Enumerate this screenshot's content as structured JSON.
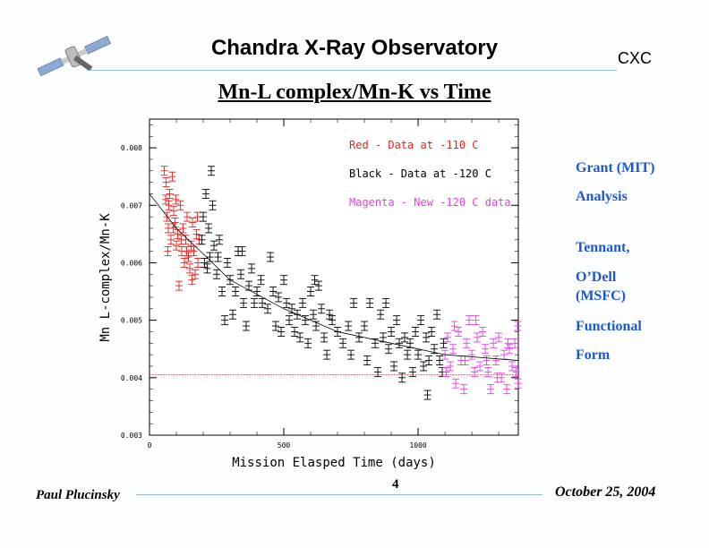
{
  "header": {
    "title": "Chandra X-Ray Observatory",
    "org": "CXC",
    "subtitle": "Mn-L complex/Mn-K vs Time"
  },
  "sidebar_notes": [
    "Grant (MIT)",
    "Analysis",
    "Tennant,",
    "O’Dell",
    "(MSFC)",
    "Functional",
    "Form"
  ],
  "footer": {
    "author": "Paul Plucinsky",
    "page": "4",
    "date": "October 25, 2004"
  },
  "colors": {
    "accent": "#1a56d6",
    "red": "#e8201c",
    "black": "#000000",
    "magenta": "#e040e0",
    "rule": "#8fb8dc"
  },
  "chart_data": {
    "type": "scatter",
    "title": "",
    "xlabel": "Mission Elasped Time (days)",
    "ylabel": "Mn L-complex/Mn-K",
    "xlim": [
      0,
      1373
    ],
    "ylim": [
      0.003,
      0.0085
    ],
    "xticks": [
      "0",
      "500",
      "1000"
    ],
    "yticks": [
      "0.003",
      "0.004",
      "0.005",
      "0.006",
      "0.007",
      "0.008"
    ],
    "grid": false,
    "legend_placement": "top-right",
    "legend": [
      {
        "text": "Red - Data at -110 C",
        "color": "#e8201c"
      },
      {
        "text": "Black - Data at -120 C",
        "color": "#000000"
      },
      {
        "text": "Magenta - New -120 C data",
        "color": "#e040e0"
      }
    ],
    "series": [
      {
        "color": "#e8201c",
        "points": [
          [
            55,
            0.0076
          ],
          [
            60,
            0.0071
          ],
          [
            65,
            0.0068
          ],
          [
            70,
            0.0066
          ],
          [
            75,
            0.0072
          ],
          [
            80,
            0.0064
          ],
          [
            85,
            0.0075
          ],
          [
            90,
            0.0069
          ],
          [
            95,
            0.0067
          ],
          [
            100,
            0.0063
          ],
          [
            105,
            0.0065
          ],
          [
            110,
            0.0056
          ],
          [
            115,
            0.007
          ],
          [
            120,
            0.0062
          ],
          [
            125,
            0.0066
          ],
          [
            130,
            0.006
          ],
          [
            135,
            0.0064
          ],
          [
            140,
            0.0068
          ],
          [
            145,
            0.0061
          ],
          [
            150,
            0.0059
          ],
          [
            155,
            0.0063
          ],
          [
            160,
            0.0067
          ],
          [
            165,
            0.0062
          ],
          [
            170,
            0.0058
          ],
          [
            175,
            0.0065
          ],
          [
            180,
            0.006
          ],
          [
            185,
            0.0064
          ],
          [
            62,
            0.0074
          ],
          [
            72,
            0.007
          ],
          [
            88,
            0.0066
          ],
          [
            98,
            0.0071
          ],
          [
            118,
            0.0064
          ],
          [
            138,
            0.0062
          ],
          [
            158,
            0.0057
          ],
          [
            178,
            0.0068
          ],
          [
            68,
            0.0062
          ]
        ]
      },
      {
        "color": "#000000",
        "points": [
          [
            195,
            0.0064
          ],
          [
            200,
            0.0068
          ],
          [
            205,
            0.006
          ],
          [
            210,
            0.0072
          ],
          [
            215,
            0.0059
          ],
          [
            220,
            0.0066
          ],
          [
            225,
            0.0061
          ],
          [
            230,
            0.0076
          ],
          [
            235,
            0.007
          ],
          [
            240,
            0.0063
          ],
          [
            250,
            0.0058
          ],
          [
            260,
            0.0064
          ],
          [
            270,
            0.0055
          ],
          [
            280,
            0.005
          ],
          [
            290,
            0.006
          ],
          [
            300,
            0.0057
          ],
          [
            310,
            0.0051
          ],
          [
            320,
            0.0055
          ],
          [
            330,
            0.0062
          ],
          [
            340,
            0.0058
          ],
          [
            350,
            0.0053
          ],
          [
            360,
            0.0049
          ],
          [
            370,
            0.0056
          ],
          [
            380,
            0.0059
          ],
          [
            390,
            0.0053
          ],
          [
            400,
            0.0055
          ],
          [
            420,
            0.0053
          ],
          [
            440,
            0.0052
          ],
          [
            450,
            0.0061
          ],
          [
            460,
            0.0055
          ],
          [
            470,
            0.0049
          ],
          [
            480,
            0.0054
          ],
          [
            490,
            0.0048
          ],
          [
            500,
            0.0057
          ],
          [
            510,
            0.0053
          ],
          [
            520,
            0.005
          ],
          [
            530,
            0.0052
          ],
          [
            540,
            0.0048
          ],
          [
            550,
            0.0051
          ],
          [
            560,
            0.0047
          ],
          [
            570,
            0.0053
          ],
          [
            580,
            0.005
          ],
          [
            590,
            0.0046
          ],
          [
            600,
            0.0055
          ],
          [
            610,
            0.0051
          ],
          [
            620,
            0.0049
          ],
          [
            630,
            0.0056
          ],
          [
            640,
            0.0052
          ],
          [
            650,
            0.0047
          ],
          [
            660,
            0.0044
          ],
          [
            670,
            0.0051
          ],
          [
            680,
            0.005
          ],
          [
            700,
            0.0048
          ],
          [
            720,
            0.0046
          ],
          [
            740,
            0.0049
          ],
          [
            750,
            0.0044
          ],
          [
            760,
            0.0053
          ],
          [
            780,
            0.0047
          ],
          [
            800,
            0.0049
          ],
          [
            810,
            0.0043
          ],
          [
            820,
            0.0053
          ],
          [
            840,
            0.0046
          ],
          [
            850,
            0.0041
          ],
          [
            860,
            0.0051
          ],
          [
            870,
            0.0047
          ],
          [
            880,
            0.0053
          ],
          [
            890,
            0.0045
          ],
          [
            900,
            0.0048
          ],
          [
            910,
            0.0042
          ],
          [
            920,
            0.005
          ],
          [
            930,
            0.0046
          ],
          [
            940,
            0.004
          ],
          [
            950,
            0.0047
          ],
          [
            960,
            0.0044
          ],
          [
            970,
            0.0046
          ],
          [
            980,
            0.0041
          ],
          [
            990,
            0.0048
          ],
          [
            1000,
            0.0044
          ],
          [
            1010,
            0.005
          ],
          [
            1020,
            0.0042
          ],
          [
            1030,
            0.0047
          ],
          [
            1035,
            0.0037
          ],
          [
            1040,
            0.0043
          ],
          [
            1050,
            0.0048
          ],
          [
            1060,
            0.0045
          ],
          [
            1070,
            0.0051
          ],
          [
            1080,
            0.0043
          ],
          [
            1090,
            0.0041
          ],
          [
            1095,
            0.0046
          ],
          [
            255,
            0.0061
          ],
          [
            345,
            0.0062
          ],
          [
            415,
            0.0057
          ],
          [
            615,
            0.0057
          ]
        ]
      },
      {
        "color": "#e040e0",
        "points": [
          [
            1100,
            0.0044
          ],
          [
            1110,
            0.0047
          ],
          [
            1120,
            0.0042
          ],
          [
            1130,
            0.0045
          ],
          [
            1140,
            0.0039
          ],
          [
            1150,
            0.0048
          ],
          [
            1160,
            0.0043
          ],
          [
            1170,
            0.0038
          ],
          [
            1180,
            0.0046
          ],
          [
            1190,
            0.005
          ],
          [
            1200,
            0.0044
          ],
          [
            1210,
            0.0041
          ],
          [
            1220,
            0.0047
          ],
          [
            1230,
            0.0042
          ],
          [
            1240,
            0.0048
          ],
          [
            1250,
            0.0045
          ],
          [
            1260,
            0.0041
          ],
          [
            1270,
            0.0038
          ],
          [
            1280,
            0.0046
          ],
          [
            1290,
            0.0043
          ],
          [
            1300,
            0.0047
          ],
          [
            1310,
            0.004
          ],
          [
            1320,
            0.0044
          ],
          [
            1330,
            0.0038
          ],
          [
            1340,
            0.0045
          ],
          [
            1350,
            0.0042
          ],
          [
            1360,
            0.0046
          ],
          [
            1365,
            0.0041
          ],
          [
            1370,
            0.0049
          ],
          [
            1372,
            0.0039
          ],
          [
            1105,
            0.0041
          ],
          [
            1135,
            0.0049
          ],
          [
            1175,
            0.0043
          ],
          [
            1215,
            0.005
          ],
          [
            1255,
            0.0043
          ],
          [
            1295,
            0.004
          ],
          [
            1335,
            0.0046
          ]
        ]
      }
    ],
    "fit_line": {
      "color": "#000000",
      "points": [
        [
          0,
          0.0072
        ],
        [
          100,
          0.0066
        ],
        [
          190,
          0.0062
        ],
        [
          300,
          0.0057
        ],
        [
          500,
          0.0052
        ],
        [
          700,
          0.0048
        ],
        [
          900,
          0.0046
        ],
        [
          1100,
          0.0044
        ],
        [
          1373,
          0.0043
        ]
      ]
    },
    "reference_line": {
      "y": 0.00405,
      "color": "#c02020",
      "style": "dotted"
    }
  }
}
